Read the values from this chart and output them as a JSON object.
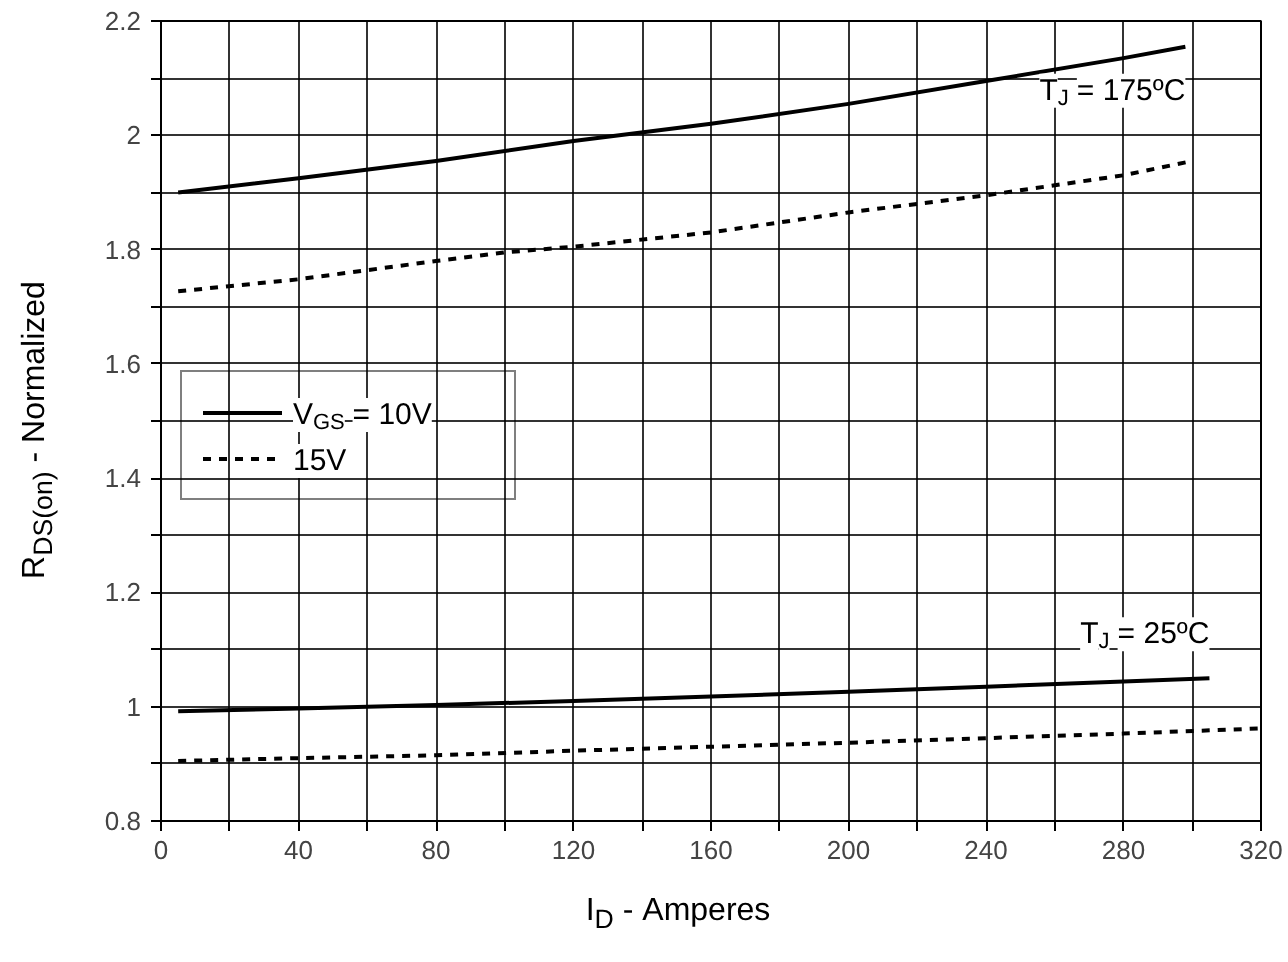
{
  "chart_data": {
    "type": "line",
    "xlabel": "I$_{D}$ - Amperes",
    "ylabel": "R$_{DS(on)}$ - Normalized",
    "xlim": [
      0,
      320
    ],
    "ylim": [
      0.8,
      2.2
    ],
    "xticks": [
      0,
      {
        "value": 20,
        "label": null
      },
      40,
      {
        "value": 60,
        "label": null
      },
      80,
      {
        "value": 100,
        "label": null
      },
      120,
      {
        "value": 140,
        "label": null
      },
      160,
      {
        "value": 180,
        "label": null
      },
      200,
      {
        "value": 220,
        "label": null
      },
      240,
      {
        "value": 260,
        "label": null
      },
      280,
      {
        "value": 300,
        "label": null
      },
      320
    ],
    "yticks": [
      0.8,
      {
        "value": 0.9,
        "label": null
      },
      1,
      {
        "value": 1.1,
        "label": null
      },
      1.2,
      {
        "value": 1.3,
        "label": null
      },
      1.4,
      {
        "value": 1.5,
        "label": null
      },
      1.6,
      {
        "value": 1.7,
        "label": null
      },
      1.8,
      {
        "value": 1.9,
        "label": null
      },
      2,
      {
        "value": 2.1,
        "label": null
      },
      2.2
    ],
    "grid": true,
    "legend": "left",
    "marker": "none",
    "series": [
      {
        "name": "V$_{GS}$ = 10V",
        "color": "#000000",
        "line_style": "solid",
        "x": [
          5,
          40,
          80,
          120,
          160,
          200,
          240,
          280,
          298
        ],
        "values": [
          1.9,
          1.925,
          1.955,
          1.99,
          2.02,
          2.055,
          2.095,
          2.135,
          2.155
        ]
      },
      {
        "name": "15V",
        "color": "#000000",
        "line_style": "dashed",
        "x": [
          5,
          40,
          80,
          100,
          120,
          160,
          200,
          240,
          280,
          300
        ],
        "values": [
          1.727,
          1.748,
          1.78,
          1.795,
          1.805,
          1.83,
          1.865,
          1.895,
          1.93,
          1.955
        ]
      },
      {
        "color": "#000000",
        "line_style": "solid",
        "x": [
          5,
          40,
          80,
          120,
          160,
          200,
          240,
          280,
          305
        ],
        "values": [
          0.992,
          0.997,
          1.003,
          1.01,
          1.018,
          1.026,
          1.035,
          1.044,
          1.05
        ]
      },
      {
        "color": "#000000",
        "line_style": "dashed",
        "x": [
          5,
          40,
          80,
          120,
          160,
          200,
          240,
          280,
          320
        ],
        "values": [
          0.905,
          0.91,
          0.915,
          0.923,
          0.93,
          0.937,
          0.945,
          0.953,
          0.962
        ]
      }
    ],
    "annotations": [
      "T$_{J}$ = 175ºC",
      "T$_{J}$ = 25ºC"
    ]
  }
}
